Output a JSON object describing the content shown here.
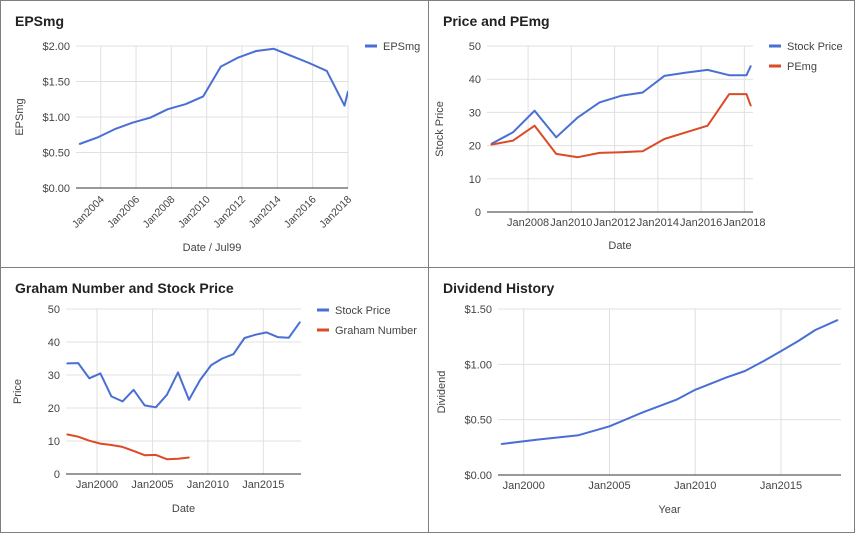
{
  "colors": {
    "blue": "#4a6fd4",
    "red": "#dc4a26",
    "grid": "#e0e0e0",
    "axis": "#333333",
    "text": "#444444"
  },
  "chart_data": [
    {
      "type": "line",
      "title": "EPSmg",
      "xlabel": "Date / Jul99",
      "ylabel": "EPSmg",
      "xlim": [
        2002.6,
        2018.0
      ],
      "ylim": [
        0,
        2
      ],
      "y_prefix": "$",
      "y_decimals": 2,
      "xticks": [
        2004,
        2006,
        2008,
        2010,
        2012,
        2014,
        2016,
        2018
      ],
      "xtick_labels": [
        "Jan2004",
        "Jan2006",
        "Jan2008",
        "Jan2010",
        "Jan2012",
        "Jan2014",
        "Jan2016",
        "Jan2018"
      ],
      "yticks": [
        0,
        0.5,
        1,
        1.5,
        2
      ],
      "ytick_labels": [
        "$0.00",
        "$0.50",
        "$1.00",
        "$1.50",
        "$2.00"
      ],
      "legend_position": "right",
      "series": [
        {
          "name": "EPSmg",
          "color": "#4a6fd4",
          "x": [
            2002.8,
            2003.8,
            2004.8,
            2005.8,
            2006.8,
            2007.8,
            2008.8,
            2009.8,
            2010.8,
            2011.8,
            2012.8,
            2013.8,
            2014.8,
            2015.8,
            2016.8,
            2017.8,
            2018.0
          ],
          "y": [
            0.62,
            0.71,
            0.83,
            0.92,
            0.99,
            1.11,
            1.18,
            1.29,
            1.71,
            1.84,
            1.93,
            1.96,
            1.86,
            1.76,
            1.65,
            1.16,
            1.36
          ]
        }
      ]
    },
    {
      "type": "line",
      "title": "Price and PEmg",
      "xlabel": "Date",
      "ylabel": "Stock Price",
      "xlim": [
        2006.1,
        2018.4
      ],
      "ylim": [
        0,
        50
      ],
      "y_prefix": "",
      "y_decimals": 0,
      "xticks": [
        2008,
        2010,
        2012,
        2014,
        2016,
        2018
      ],
      "xtick_labels": [
        "Jan2008",
        "Jan2010",
        "Jan2012",
        "Jan2014",
        "Jan2016",
        "Jan2018"
      ],
      "yticks": [
        0,
        10,
        20,
        30,
        40,
        50
      ],
      "ytick_labels": [
        "0",
        "10",
        "20",
        "30",
        "40",
        "50"
      ],
      "legend_position": "right",
      "series": [
        {
          "name": "Stock Price",
          "color": "#4a6fd4",
          "x": [
            2006.3,
            2007.3,
            2008.3,
            2009.3,
            2010.3,
            2011.3,
            2012.3,
            2013.3,
            2014.3,
            2015.3,
            2016.3,
            2017.3,
            2018.1,
            2018.3
          ],
          "y": [
            20.5,
            24,
            30.5,
            22.5,
            28.5,
            33,
            35,
            36,
            41,
            42,
            42.8,
            41.2,
            41.2,
            44
          ]
        },
        {
          "name": "PEmg",
          "color": "#dc4a26",
          "x": [
            2006.3,
            2007.3,
            2008.3,
            2009.3,
            2010.3,
            2011.3,
            2012.3,
            2013.3,
            2014.3,
            2015.3,
            2016.3,
            2017.3,
            2018.1,
            2018.3
          ],
          "y": [
            20.3,
            21.5,
            26,
            17.5,
            16.5,
            17.8,
            18,
            18.3,
            22,
            24,
            26,
            35.5,
            35.5,
            32
          ]
        }
      ]
    },
    {
      "type": "line",
      "title": "Graham Number and Stock Price",
      "xlabel": "Date",
      "ylabel": "Price",
      "xlim": [
        1997.2,
        2018.4
      ],
      "ylim": [
        0,
        50
      ],
      "y_prefix": "",
      "y_decimals": 0,
      "xticks": [
        2000,
        2005,
        2010,
        2015
      ],
      "xtick_labels": [
        "Jan2000",
        "Jan2005",
        "Jan2010",
        "Jan2015"
      ],
      "yticks": [
        0,
        10,
        20,
        30,
        40,
        50
      ],
      "ytick_labels": [
        "0",
        "10",
        "20",
        "30",
        "40",
        "50"
      ],
      "legend_position": "right",
      "series": [
        {
          "name": "Stock Price",
          "color": "#4a6fd4",
          "x": [
            1997.3,
            1998.3,
            1999.3,
            2000.3,
            2001.3,
            2002.3,
            2003.3,
            2004.3,
            2005.3,
            2006.3,
            2007.3,
            2008.3,
            2009.3,
            2010.3,
            2011.3,
            2012.3,
            2013.3,
            2014.3,
            2015.3,
            2016.3,
            2017.3,
            2018.3
          ],
          "y": [
            33.5,
            33.6,
            29,
            30.5,
            23.5,
            22,
            25.5,
            20.8,
            20.2,
            24,
            30.8,
            22.5,
            28.5,
            33,
            35,
            36.3,
            41.2,
            42.2,
            42.9,
            41.5,
            41.3,
            46
          ]
        },
        {
          "name": "Graham Number",
          "color": "#dc4a26",
          "x": [
            1997.3,
            1998.3,
            1999.3,
            2000.3,
            2001.3,
            2002.3,
            2003.3,
            2004.3,
            2005.3,
            2006.3,
            2007.3,
            2008.3
          ],
          "y": [
            12,
            11.3,
            10.1,
            9.2,
            8.8,
            8.2,
            7,
            5.7,
            5.8,
            4.5,
            4.6,
            5
          ]
        }
      ]
    },
    {
      "type": "line",
      "title": "Dividend History",
      "xlabel": "Year",
      "ylabel": "Dividend",
      "xlim": [
        1998.5,
        2018.5
      ],
      "ylim": [
        0,
        1.5
      ],
      "y_prefix": "$",
      "y_decimals": 2,
      "xticks": [
        2000,
        2005,
        2010,
        2015
      ],
      "xtick_labels": [
        "Jan2000",
        "Jan2005",
        "Jan2010",
        "Jan2015"
      ],
      "yticks": [
        0,
        0.5,
        1,
        1.5
      ],
      "ytick_labels": [
        "$0.00",
        "$0.50",
        "$1.00",
        "$1.50"
      ],
      "legend_position": "none",
      "series": [
        {
          "name": "",
          "color": "#4a6fd4",
          "x": [
            1998.7,
            2000.8,
            2003.2,
            2005.0,
            2007.0,
            2008.9,
            2010.0,
            2011.8,
            2012.9,
            2014.0,
            2015.0,
            2016.0,
            2017.0,
            2018.3
          ],
          "y": [
            0.28,
            0.32,
            0.36,
            0.44,
            0.57,
            0.68,
            0.77,
            0.88,
            0.94,
            1.03,
            1.12,
            1.21,
            1.31,
            1.4
          ]
        }
      ]
    }
  ]
}
